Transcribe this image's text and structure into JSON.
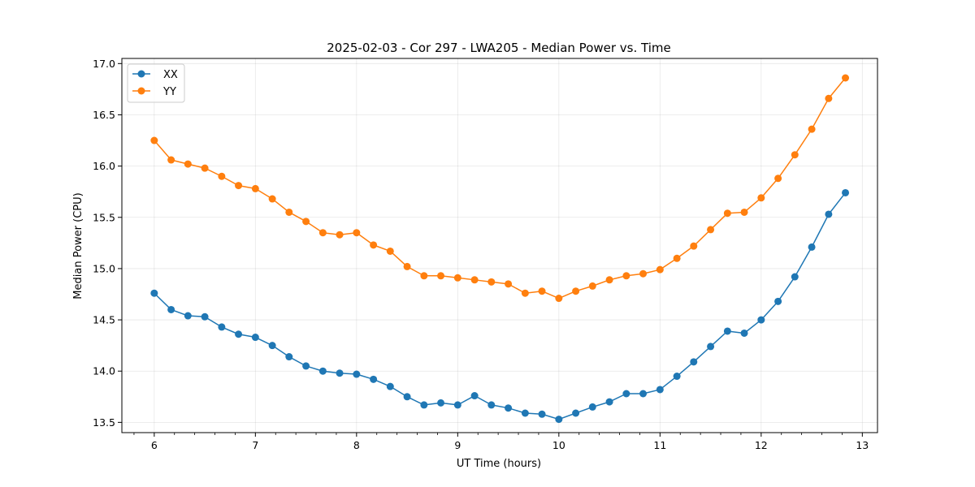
{
  "chart_data": {
    "type": "line",
    "title": "2025-02-03 - Cor 297 - LWA205 - Median Power vs. Time",
    "xlabel": "UT Time (hours)",
    "ylabel": "Median Power (CPU)",
    "xlim": [
      5.68,
      13.15
    ],
    "ylim": [
      13.4,
      17.05
    ],
    "xticks": [
      6,
      7,
      8,
      9,
      10,
      11,
      12,
      13
    ],
    "yticks": [
      13.5,
      14.0,
      14.5,
      15.0,
      15.5,
      16.0,
      16.5,
      17.0
    ],
    "xtick_labels": [
      "6",
      "7",
      "8",
      "9",
      "10",
      "11",
      "12",
      "13"
    ],
    "ytick_labels": [
      "13.5",
      "14.0",
      "14.5",
      "15.0",
      "15.5",
      "16.0",
      "16.5",
      "17.0"
    ],
    "grid": true,
    "legend_position": "top-left",
    "x": [
      6.0,
      6.167,
      6.333,
      6.5,
      6.667,
      6.833,
      7.0,
      7.167,
      7.333,
      7.5,
      7.667,
      7.833,
      8.0,
      8.167,
      8.333,
      8.5,
      8.667,
      8.833,
      9.0,
      9.167,
      9.333,
      9.5,
      9.667,
      9.833,
      10.0,
      10.167,
      10.333,
      10.5,
      10.667,
      10.833,
      11.0,
      11.167,
      11.333,
      11.5,
      11.667,
      11.833,
      12.0,
      12.167,
      12.333,
      12.5,
      12.667,
      12.833
    ],
    "series": [
      {
        "name": "XX",
        "color": "#1f77b4",
        "values": [
          14.76,
          14.6,
          14.54,
          14.53,
          14.43,
          14.36,
          14.33,
          14.25,
          14.14,
          14.05,
          14.0,
          13.98,
          13.97,
          13.92,
          13.85,
          13.75,
          13.67,
          13.69,
          13.67,
          13.76,
          13.67,
          13.64,
          13.59,
          13.58,
          13.53,
          13.59,
          13.65,
          13.7,
          13.78,
          13.78,
          13.82,
          13.95,
          14.09,
          14.24,
          14.39,
          14.37,
          14.5,
          14.68,
          14.92,
          15.21,
          15.53,
          15.74
        ]
      },
      {
        "name": "YY",
        "color": "#ff7f0e",
        "values": [
          16.25,
          16.06,
          16.02,
          15.98,
          15.9,
          15.81,
          15.78,
          15.68,
          15.55,
          15.46,
          15.35,
          15.33,
          15.35,
          15.23,
          15.17,
          15.02,
          14.93,
          14.93,
          14.91,
          14.89,
          14.87,
          14.85,
          14.76,
          14.78,
          14.71,
          14.78,
          14.83,
          14.89,
          14.93,
          14.95,
          14.99,
          15.1,
          15.22,
          15.38,
          15.54,
          15.55,
          15.69,
          15.88,
          16.11,
          16.36,
          16.66,
          16.86
        ]
      }
    ]
  }
}
